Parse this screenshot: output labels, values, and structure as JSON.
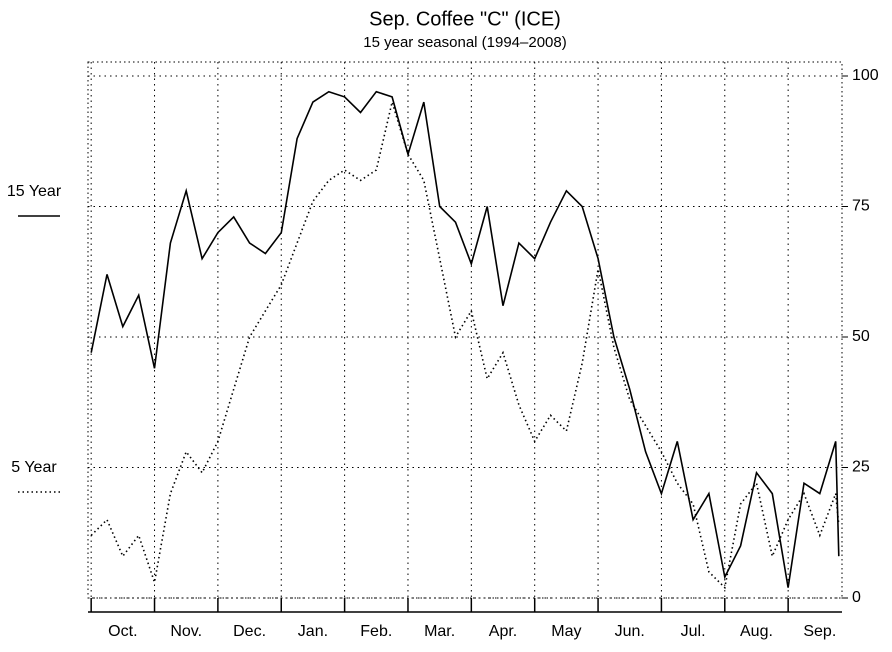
{
  "chart_data": {
    "type": "line",
    "title": "Sep. Coffee \"C\" (ICE)",
    "subtitle": "15 year seasonal (1994–2008)",
    "categories": [
      "Oct.",
      "Nov.",
      "Dec.",
      "Jan.",
      "Feb.",
      "Mar.",
      "Apr.",
      "May",
      "Jun.",
      "Jul.",
      "Aug.",
      "Sep."
    ],
    "xlim": [
      -0.05,
      11.85
    ],
    "xticks": [
      0,
      1,
      2,
      3,
      4,
      5,
      6,
      7,
      8,
      9,
      10,
      11,
      12
    ],
    "x": [
      0,
      0.25,
      0.5,
      0.75,
      1,
      1.25,
      1.5,
      1.75,
      2,
      2.25,
      2.5,
      2.75,
      3,
      3.25,
      3.5,
      3.75,
      4,
      4.25,
      4.5,
      4.75,
      5,
      5.25,
      5.5,
      5.75,
      6,
      6.25,
      6.5,
      6.75,
      7,
      7.25,
      7.5,
      7.75,
      8,
      8.25,
      8.5,
      8.75,
      9,
      9.25,
      9.5,
      9.75,
      10,
      10.25,
      10.5,
      10.75,
      11,
      11.25,
      11.5,
      11.75,
      11.8
    ],
    "ylim": [
      0,
      100
    ],
    "yticks": [
      0,
      25,
      50,
      75,
      100
    ],
    "grid": true,
    "series": [
      {
        "name": "15 Year",
        "color": "#000000",
        "style": "solid",
        "values": [
          47,
          62,
          52,
          58,
          44,
          68,
          78,
          65,
          70,
          73,
          68,
          66,
          70,
          88,
          95,
          97,
          96,
          93,
          97,
          96,
          85,
          95,
          75,
          72,
          64,
          75,
          56,
          68,
          65,
          72,
          78,
          75,
          65,
          50,
          40,
          28,
          20,
          30,
          15,
          20,
          4,
          10,
          24,
          20,
          2,
          22,
          20,
          30,
          8
        ]
      },
      {
        "name": "5 Year",
        "color": "#000000",
        "style": "dotted",
        "values": [
          12,
          15,
          8,
          12,
          3,
          20,
          28,
          24,
          30,
          40,
          50,
          55,
          60,
          68,
          76,
          80,
          82,
          80,
          82,
          95,
          85,
          80,
          65,
          50,
          55,
          42,
          47,
          37,
          30,
          35,
          32,
          45,
          63,
          48,
          38,
          33,
          28,
          22,
          18,
          5,
          2,
          18,
          22,
          8,
          15,
          20,
          12,
          20,
          14
        ]
      }
    ]
  }
}
